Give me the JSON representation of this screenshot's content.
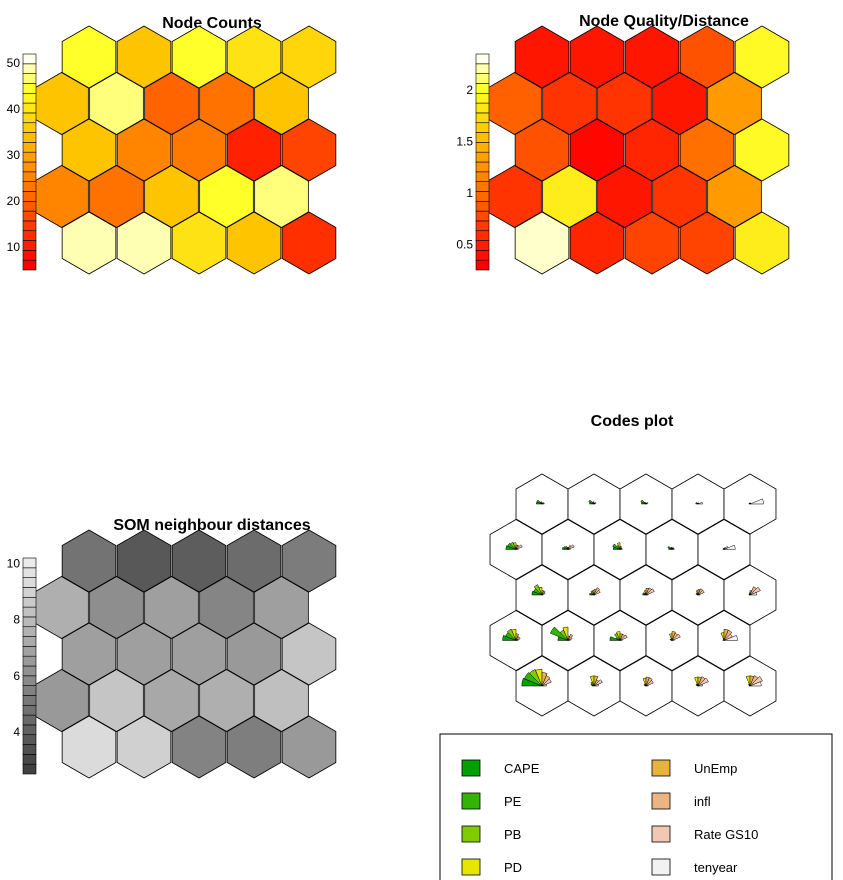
{
  "chart_data": [
    {
      "id": "node-counts",
      "type": "heatmap",
      "title": "Node Counts",
      "grid": "hexagonal 5x5",
      "colorbar_ticks": [
        10,
        20,
        30,
        40,
        50
      ],
      "palette": "heat (red-orange-yellow-white)",
      "rows": [
        [
          50,
          50,
          40,
          35,
          12
        ],
        [
          25,
          22,
          35,
          45,
          48
        ],
        [
          35,
          25,
          23,
          10,
          15
        ],
        [
          35,
          48,
          20,
          22,
          35
        ],
        [
          45,
          35,
          45,
          40,
          38
        ]
      ],
      "rows_order": "bottom to top"
    },
    {
      "id": "node-quality",
      "type": "heatmap",
      "title": "Node Quality/Distance",
      "grid": "hexagonal 5x5",
      "colorbar_ticks": [
        0.5,
        1,
        1.5,
        2
      ],
      "palette": "heat (red-orange-yellow-white)",
      "rows": [
        [
          2.3,
          0.5,
          0.7,
          0.7,
          1.9
        ],
        [
          0.6,
          1.9,
          0.4,
          0.6,
          1.3
        ],
        [
          0.8,
          0.3,
          0.5,
          1.0,
          2.0
        ],
        [
          0.9,
          0.6,
          0.6,
          0.4,
          1.3
        ],
        [
          0.4,
          0.4,
          0.4,
          0.8,
          2.0
        ]
      ],
      "rows_order": "bottom to top"
    },
    {
      "id": "neighbour-distances",
      "type": "heatmap",
      "title": "SOM neighbour distances",
      "grid": "hexagonal 5x5",
      "colorbar_ticks": [
        4,
        6,
        8,
        10
      ],
      "palette": "gray",
      "rows": [
        [
          9.5,
          9.0,
          5.5,
          5.3,
          6.5
        ],
        [
          6.5,
          8.5,
          7.2,
          7.5,
          8.2
        ],
        [
          6.8,
          6.8,
          6.8,
          6.5,
          8.5
        ],
        [
          7.5,
          6.0,
          6.8,
          5.6,
          6.8
        ],
        [
          4.8,
          3.6,
          3.8,
          4.5,
          5.2
        ]
      ],
      "rows_order": "bottom to top"
    },
    {
      "id": "codes-plot",
      "type": "pie",
      "title": "Codes plot",
      "grid": "hexagonal 5x5 fan (segment) charts",
      "legend": [
        "CAPE",
        "PE",
        "PB",
        "PD",
        "UnEmp",
        "infl",
        "Rate GS10",
        "tenyear"
      ],
      "legend_colors": [
        "#00a000",
        "#33b400",
        "#80cc00",
        "#e6e600",
        "#e6b43c",
        "#ebb482",
        "#f0c8b4",
        "#f2f2f2"
      ],
      "legend_placement": "bottom",
      "rows_order": "bottom to top",
      "rows": [
        [
          [
            0.9,
            0.85,
            0.8,
            0.75,
            0.6,
            0.5,
            0.45,
            0.2
          ],
          [
            0.1,
            0.15,
            0.2,
            0.45,
            0.45,
            0.3,
            0.4,
            0.2
          ],
          [
            0.05,
            0.1,
            0.1,
            0.35,
            0.4,
            0.4,
            0.35,
            0.1
          ],
          [
            0.05,
            0.1,
            0.1,
            0.4,
            0.4,
            0.45,
            0.5,
            0.2
          ],
          [
            0.05,
            0.05,
            0.1,
            0.45,
            0.45,
            0.5,
            0.6,
            0.5
          ]
        ],
        [
          [
            0.6,
            0.5,
            0.55,
            0.5,
            0.3,
            0.2,
            0.2,
            0.1
          ],
          [
            0.45,
            0.85,
            0.5,
            0.6,
            0.2,
            0.3,
            0.2,
            0.1
          ],
          [
            0.45,
            0.2,
            0.35,
            0.4,
            0.3,
            0.3,
            0.35,
            0.1
          ],
          [
            0.05,
            0.1,
            0.05,
            0.3,
            0.4,
            0.35,
            0.4,
            0.1
          ],
          [
            0.05,
            0.05,
            0.05,
            0.35,
            0.5,
            0.5,
            0.4,
            0.6
          ]
        ],
        [
          [
            0.45,
            0.4,
            0.5,
            0.35,
            0.2,
            0.2,
            0.15,
            0.05
          ],
          [
            0.2,
            0.15,
            0.2,
            0.2,
            0.25,
            0.35,
            0.3,
            0.05
          ],
          [
            0.15,
            0.15,
            0.1,
            0.2,
            0.3,
            0.35,
            0.4,
            0.1
          ],
          [
            0.05,
            0.1,
            0.1,
            0.2,
            0.25,
            0.3,
            0.3,
            0.1
          ],
          [
            0.05,
            0.05,
            0.05,
            0.1,
            0.2,
            0.4,
            0.5,
            0.3
          ]
        ],
        [
          [
            0.45,
            0.4,
            0.35,
            0.3,
            0.2,
            0.2,
            0.3,
            0.1
          ],
          [
            0.25,
            0.2,
            0.15,
            0.1,
            0.1,
            0.2,
            0.3,
            0.1
          ],
          [
            0.3,
            0.35,
            0.2,
            0.3,
            0.15,
            0.1,
            0.1,
            0.1
          ],
          [
            0.15,
            0.2,
            0.1,
            0.1,
            0.05,
            0.1,
            0.1,
            0.1
          ],
          [
            0.05,
            0.05,
            0.05,
            0.05,
            0.05,
            0.1,
            0.2,
            0.5
          ]
        ],
        [
          [
            0.25,
            0.25,
            0.1,
            0.1,
            0.05,
            0.05,
            0.1,
            0.1
          ],
          [
            0.2,
            0.25,
            0.1,
            0.1,
            0.05,
            0.05,
            0.1,
            0.05
          ],
          [
            0.2,
            0.25,
            0.1,
            0.05,
            0.05,
            0.05,
            0.1,
            0.05
          ],
          [
            0.1,
            0.1,
            0.05,
            0.05,
            0.05,
            0.05,
            0.05,
            0.2
          ],
          [
            0.05,
            0.05,
            0.05,
            0.05,
            0.05,
            0.05,
            0.05,
            0.6
          ]
        ]
      ]
    }
  ]
}
